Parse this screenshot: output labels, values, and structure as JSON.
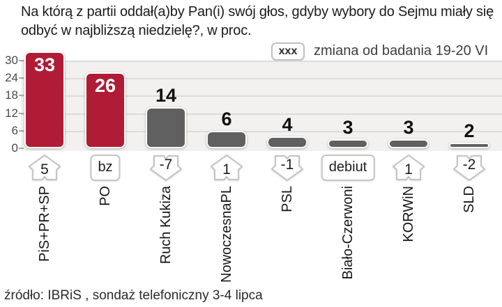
{
  "title": "Na którą z partii oddał(a)by Pan(i) swój głos, gdyby wybory do Sejmu miały się odbyć w najbliższą niedzielę?, w proc.",
  "legend": {
    "sample_label": "xxx",
    "text": "zmiana od badania 19-20 VI"
  },
  "source": "źródło: IBRiS , sondaż telefoniczny 3-4 lipca",
  "colors": {
    "bar_highlight": "#b01b35",
    "bar_default": "#616060",
    "value_on_highlight": "#ffffff",
    "value_on_default": "#111111",
    "plot_background": "#f2f1ef",
    "gridline": "#dedcda",
    "arrow_border": "#c7c5c3"
  },
  "chart_data": {
    "type": "bar",
    "title": "Na którą z partii oddał(a)by Pan(i) swój głos, gdyby wybory do Sejmu miały się odbyć w najbliższą niedzielę?, w proc.",
    "categories": [
      "PiS+PR+SP",
      "PO",
      "Ruch Kukiza",
      "NowoczesnaPL",
      "PSL",
      "Biało-Czerwoni",
      "KORWiN",
      "SLD"
    ],
    "values": [
      33,
      26,
      14,
      6,
      4,
      3,
      3,
      2
    ],
    "changes": [
      "5",
      "bz",
      "-7",
      "1",
      "-1",
      "debiut",
      "1",
      "-2"
    ],
    "change_types": [
      "up",
      "box",
      "down",
      "up",
      "down",
      "box",
      "up",
      "down"
    ],
    "highlighted": [
      true,
      true,
      false,
      false,
      false,
      false,
      false,
      false
    ],
    "yticks": [
      0,
      6,
      12,
      18,
      24,
      30
    ],
    "ylim": [
      0,
      34
    ],
    "xlabel": "",
    "ylabel": "",
    "grid": true,
    "legend_note": "zmiana od badania 19-20 VI",
    "source": "źródło: IBRiS , sondaż telefoniczny 3-4 lipca"
  }
}
